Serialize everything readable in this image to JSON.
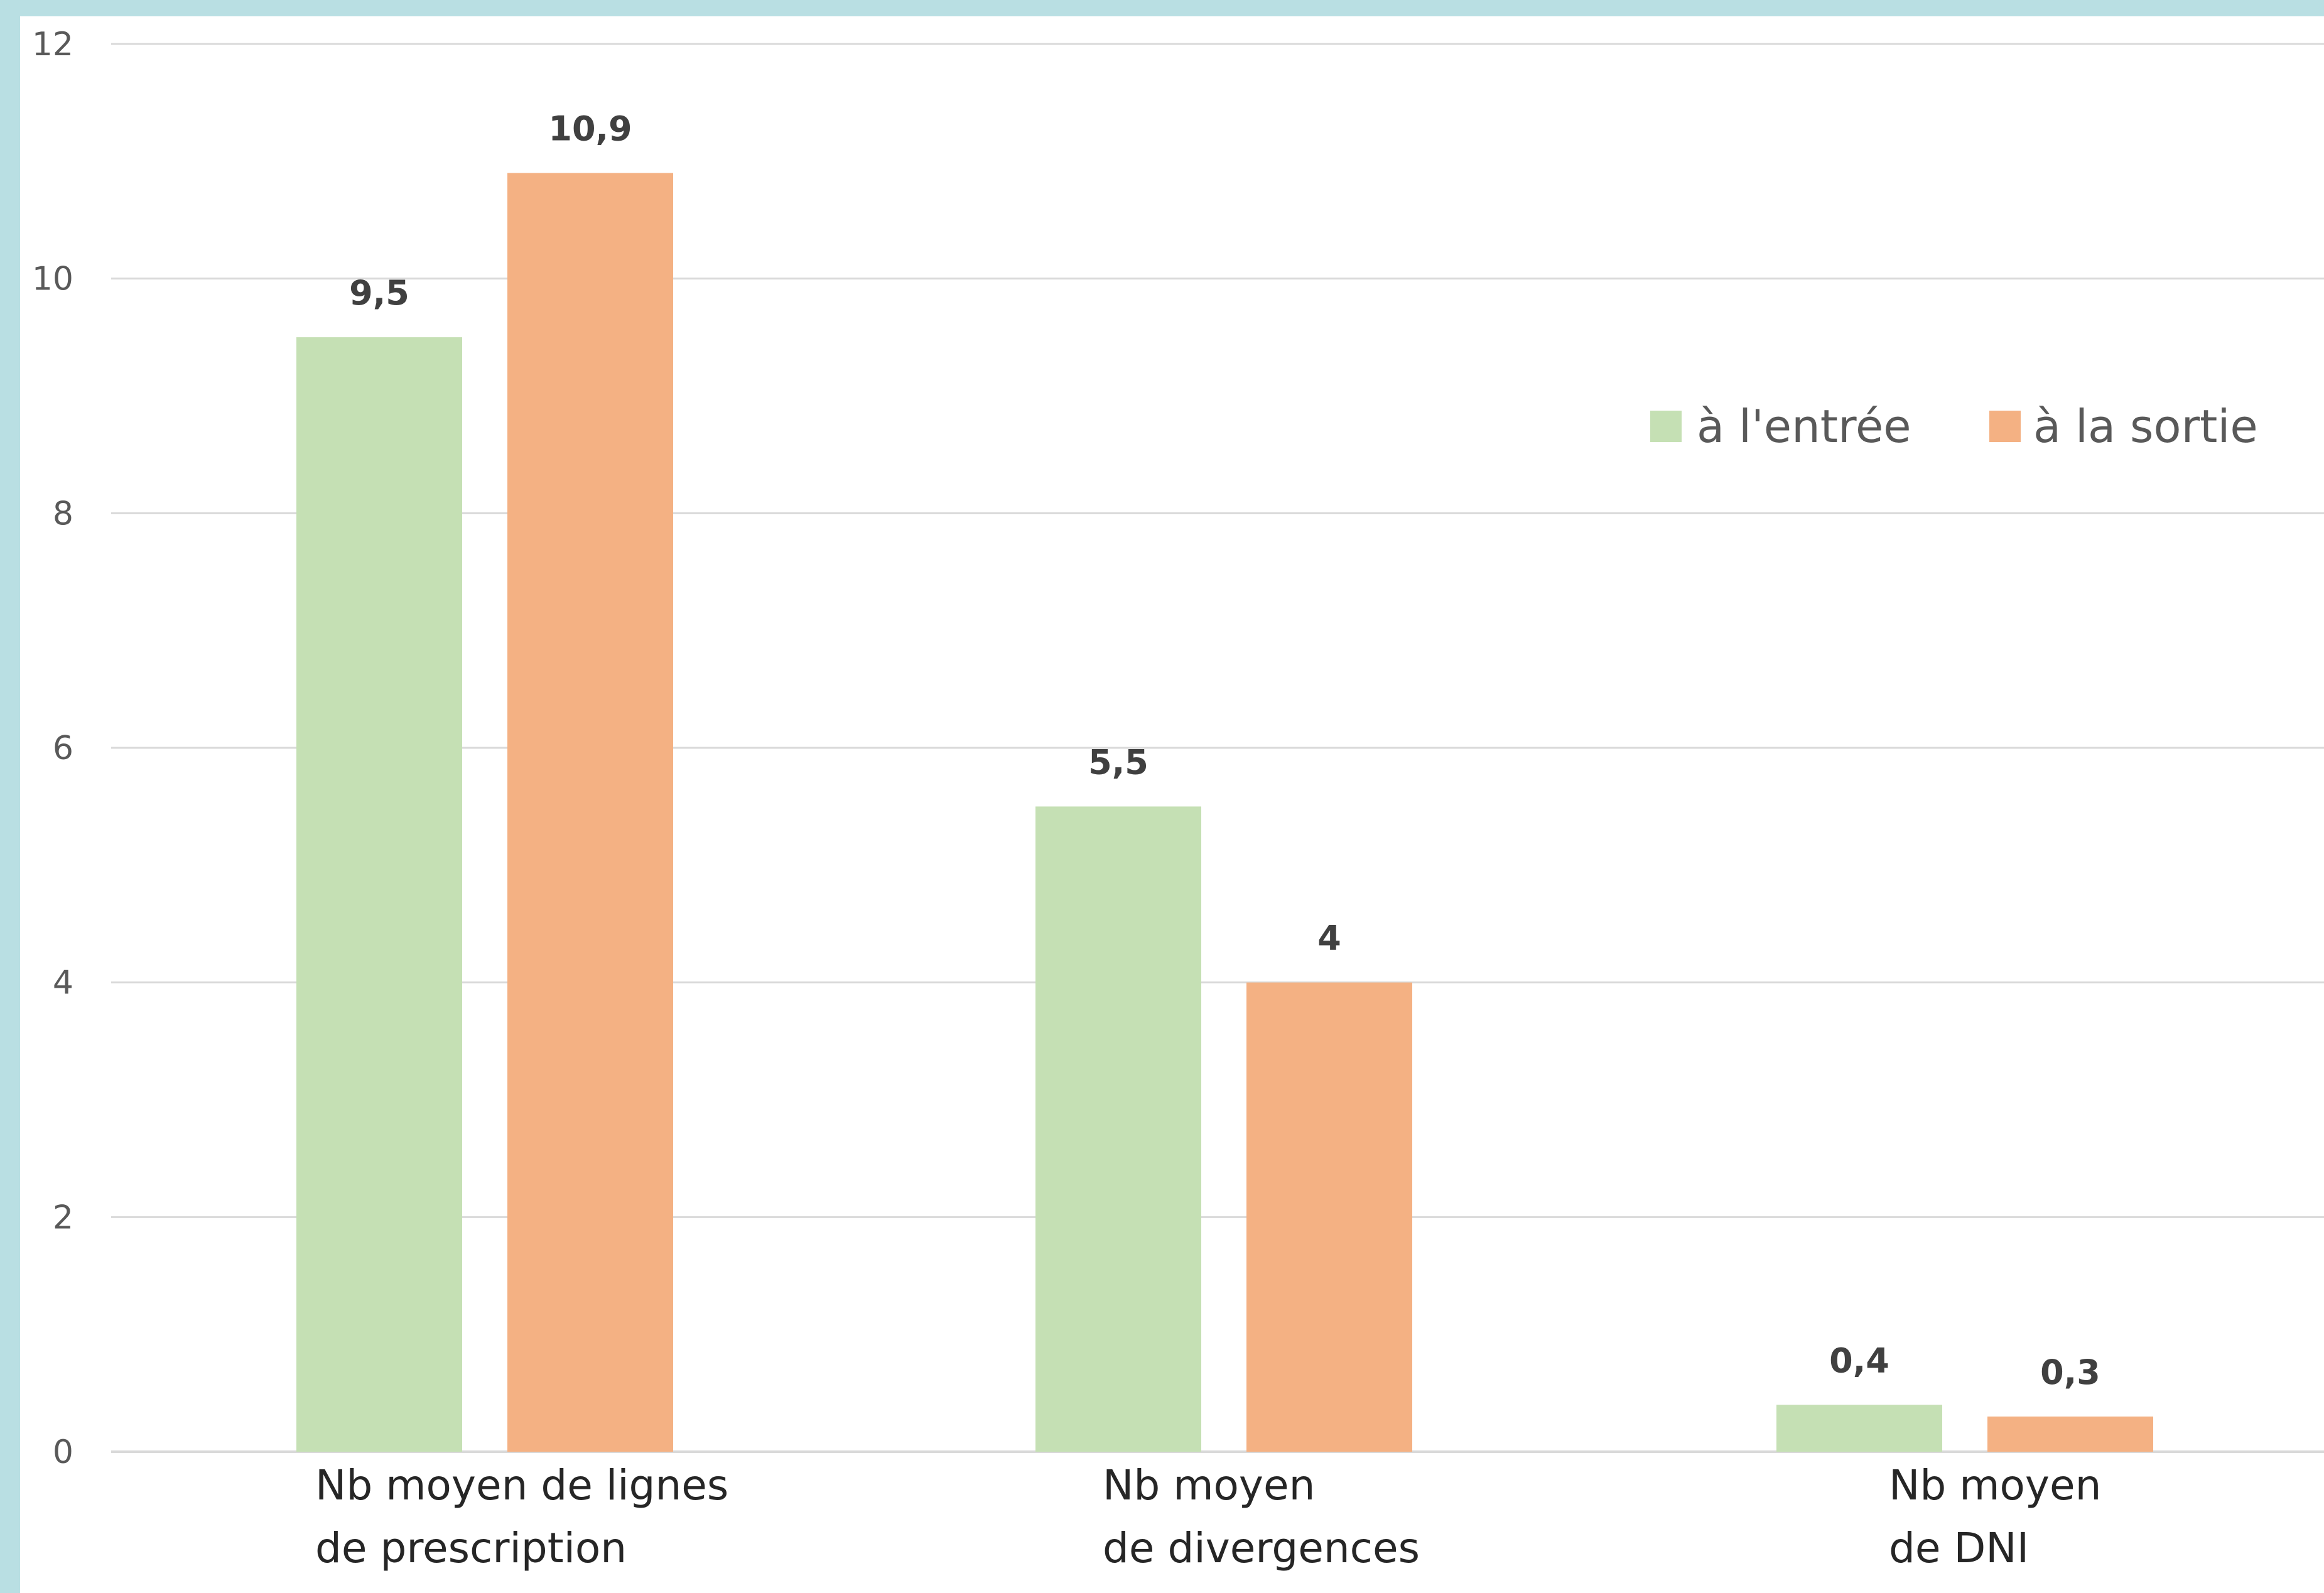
{
  "chart_data": {
    "type": "bar",
    "categories": [
      [
        "Nb moyen de lignes",
        "de prescription"
      ],
      [
        "Nb moyen",
        "de divergences"
      ],
      [
        "Nb moyen",
        "de DNI"
      ]
    ],
    "series": [
      {
        "name": "à l'entrée",
        "color": "#c5e0b4",
        "values": [
          9.5,
          5.5,
          0.4
        ],
        "labels": [
          "9,5",
          "5,5",
          "0,4"
        ]
      },
      {
        "name": "à la sortie",
        "color": "#f4b183",
        "values": [
          10.9,
          4,
          0.3
        ],
        "labels": [
          "10,9",
          "4",
          "0,3"
        ]
      }
    ],
    "ylim": [
      0,
      12
    ],
    "yticks": [
      0,
      2,
      4,
      6,
      8,
      10,
      12
    ],
    "grid": true,
    "legend_position": "top-right",
    "gridline_color": "#d9d9d9"
  }
}
